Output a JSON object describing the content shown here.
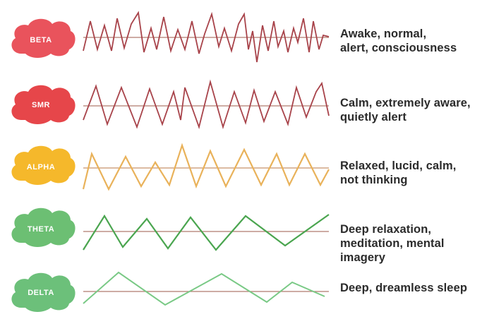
{
  "bands": [
    {
      "id": "beta",
      "label": "BETA",
      "color": "#e9535c",
      "wave_color": "#a8434a",
      "baseline_color": "#b07a6e",
      "label_color": "#ffffff",
      "description": [
        "Awake, normal,",
        "alert, consciousness"
      ]
    },
    {
      "id": "smr",
      "label": "SMR",
      "color": "#e6464a",
      "wave_color": "#a8434a",
      "baseline_color": "#b07a6e",
      "label_color": "#ffffff",
      "description": [
        "Calm, extremely aware,",
        "quietly alert"
      ]
    },
    {
      "id": "alpha",
      "label": "ALPHA",
      "color": "#f5b82b",
      "wave_color": "#e9b25a",
      "baseline_color": "#c8926a",
      "label_color": "#ffffff",
      "description": [
        "Relaxed, lucid, calm,",
        "not thinking"
      ]
    },
    {
      "id": "theta",
      "label": "THETA",
      "color": "#6cbf73",
      "wave_color": "#4aa54f",
      "baseline_color": "#b07a6e",
      "label_color": "#ffffff",
      "description": [
        "Deep relaxation,",
        "meditation, mental",
        "imagery"
      ]
    },
    {
      "id": "delta",
      "label": "DELTA",
      "color": "#6cc07a",
      "wave_color": "#79c985",
      "baseline_color": "#b07a6e",
      "label_color": "#ffffff",
      "description": [
        "Deep, dreamless sleep"
      ]
    }
  ]
}
